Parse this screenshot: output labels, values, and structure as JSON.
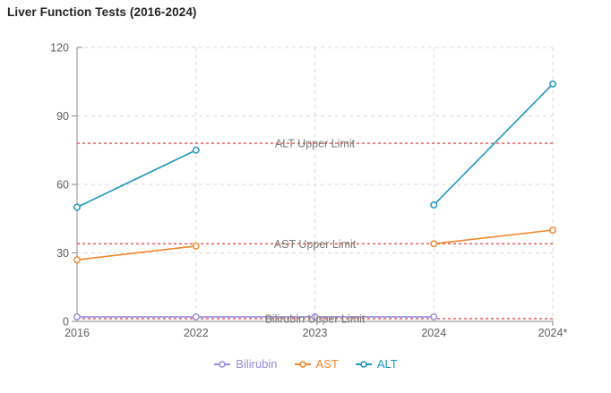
{
  "title": "Liver Function Tests (2016-2024)",
  "chart_data": {
    "type": "line",
    "categories": [
      "2016",
      "2022",
      "2023",
      "2024",
      "2024*"
    ],
    "series": [
      {
        "name": "Bilirubin",
        "color": "#978FD9",
        "values": [
          2,
          2,
          2,
          2,
          null
        ]
      },
      {
        "name": "AST",
        "color": "#F0862D",
        "values": [
          27,
          33,
          null,
          34,
          40
        ]
      },
      {
        "name": "ALT",
        "color": "#2196BD",
        "values": [
          50,
          75,
          null,
          51,
          104
        ]
      }
    ],
    "reference_lines": [
      {
        "label": "ALT Upper Limit",
        "value": 78,
        "color": "#E84C4C"
      },
      {
        "label": "AST Upper Limit",
        "value": 34,
        "color": "#E84C4C"
      },
      {
        "label": "Bilirubin Upper Limit",
        "value": 1.2,
        "color": "#E84C4C"
      }
    ],
    "ylim": [
      0,
      120
    ],
    "yticks": [
      0,
      30,
      60,
      90,
      120
    ],
    "xlabel": "",
    "ylabel": "",
    "grid": true,
    "legend_position": "bottom"
  },
  "colors": {
    "background": "#FFFFFF",
    "title_text": "#252423",
    "axis_line": "#8A8A8A",
    "axis_label": "#605E5C",
    "gridline": "#D9D9D9",
    "reference_label": "#7A7A7A",
    "marker_fill": "#FFFFFF"
  }
}
